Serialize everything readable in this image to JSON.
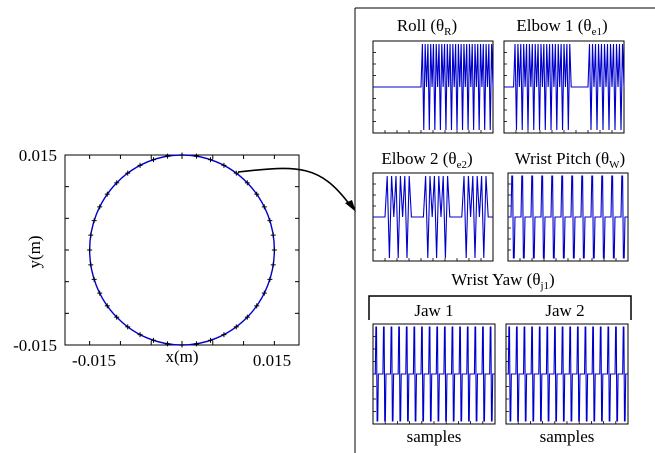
{
  "chart_data": [
    {
      "type": "scatter",
      "xlabel": "x(m)",
      "ylabel": "y(m)",
      "xlim": [
        -0.019,
        0.019
      ],
      "ylim": [
        -0.015,
        0.015
      ],
      "x_ticks": [
        "-0.015",
        "0.015"
      ],
      "y_ticks": [
        "0.015",
        "-0.015"
      ],
      "series": [
        {
          "shape": "circle",
          "center": [
            0,
            0
          ],
          "radius": 0.015,
          "points": 40,
          "color": "#0000cc",
          "marker_color": "#000000"
        }
      ]
    },
    {
      "type": "line",
      "titles": {
        "roll": {
          "text": "Roll (θ",
          "sub": "R",
          "close": ")"
        },
        "elbow1": {
          "text": "Elbow 1 (θ",
          "sub": "e1",
          "close": ")"
        },
        "elbow2": {
          "text": "Elbow 2 (θ",
          "sub": "e2",
          "close": ")"
        },
        "wrist_pitch": {
          "text": "Wrist Pitch (θ",
          "sub": "W",
          "close": ")"
        },
        "wrist_yaw": {
          "text": "Wrist Yaw (θ",
          "sub": "j1",
          "close": ")"
        },
        "jaw1": "Jaw 1",
        "jaw2": "Jaw 2"
      },
      "xlabel_jaw1": "samples",
      "xlabel_jaw2": "samples",
      "color": "#0000cc",
      "panels": [
        {
          "id": "roll",
          "pattern": [
            {
              "from": 0,
              "to": 0.4,
              "amp": 0
            },
            {
              "from": 0.4,
              "to": 1.0,
              "amp": 1,
              "cycles": 13
            }
          ]
        },
        {
          "id": "elbow1",
          "pattern": [
            {
              "from": 0,
              "to": 0.08,
              "amp": 0
            },
            {
              "from": 0.08,
              "to": 0.56,
              "amp": 1,
              "cycles": 10
            },
            {
              "from": 0.56,
              "to": 0.7,
              "amp": 0
            },
            {
              "from": 0.7,
              "to": 1.0,
              "amp": 1,
              "cycles": 6
            }
          ]
        },
        {
          "id": "elbow2",
          "pattern": [
            {
              "from": 0,
              "to": 0.1,
              "amp": 0
            },
            {
              "from": 0.1,
              "to": 0.32,
              "amp": 1,
              "cycles": 3
            },
            {
              "from": 0.32,
              "to": 0.42,
              "amp": 0
            },
            {
              "from": 0.42,
              "to": 0.64,
              "amp": 1,
              "cycles": 3
            },
            {
              "from": 0.64,
              "to": 0.74,
              "amp": 0
            },
            {
              "from": 0.74,
              "to": 0.96,
              "amp": 1,
              "cycles": 3
            },
            {
              "from": 0.96,
              "to": 1.0,
              "amp": 0
            }
          ]
        },
        {
          "id": "wrist_pitch",
          "pattern": [
            {
              "from": 0,
              "to": 1.0,
              "amp": 1,
              "cycles": 12,
              "style": "pulse"
            }
          ]
        },
        {
          "id": "jaw1",
          "pattern": [
            {
              "from": 0,
              "to": 1.0,
              "amp": 1,
              "cycles": 16,
              "style": "pulse"
            }
          ]
        },
        {
          "id": "jaw2",
          "pattern": [
            {
              "from": 0,
              "to": 1.0,
              "amp": 1,
              "cycles": 16,
              "style": "pulse"
            }
          ]
        }
      ]
    }
  ]
}
